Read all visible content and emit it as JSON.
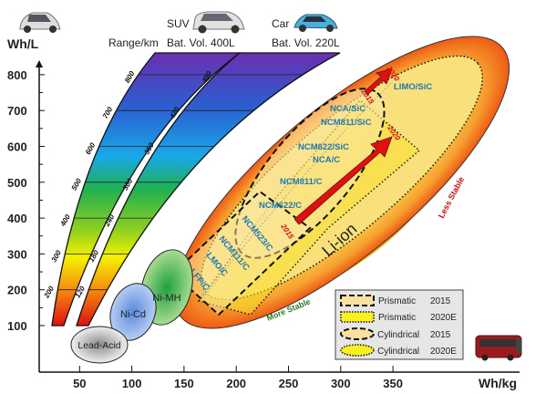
{
  "chart_data": {
    "type": "diagram",
    "title": "",
    "ylabel": "Wh/L",
    "xlabel": "Wh/kg",
    "ylim": [
      0,
      850
    ],
    "xlim": [
      0,
      375
    ],
    "y_ticks": [
      100,
      200,
      300,
      400,
      500,
      600,
      700,
      800
    ],
    "x_ticks": [
      50,
      100,
      150,
      200,
      250,
      300,
      350
    ],
    "range_header": "Range/km",
    "range_bands": [
      {
        "vehicle": "SUV",
        "volume": "Bat. Vol. 400L",
        "ticks": [
          "200",
          "300",
          "400",
          "500",
          "600",
          "700",
          "800"
        ]
      },
      {
        "vehicle": "Car",
        "volume": "Bat. Vol. 220L",
        "ticks": [
          "120",
          "180",
          "240",
          "300",
          "360",
          "420",
          "480"
        ]
      }
    ],
    "technologies": [
      "Lead-Acid",
      "Ni-Cd",
      "Ni-MH",
      "Li-ion"
    ],
    "chemistries": [
      "LIMO/SiC",
      "NCA/SiC",
      "NCM811/SiC",
      "NCM622/SiC",
      "NCA/C",
      "NCM811/C",
      "NCM622/C",
      "NCM523/C",
      "NCM111/C",
      "LMO/C",
      "LFP/C"
    ],
    "arrow_labels": [
      "2015",
      "2020",
      "2015",
      "2020"
    ],
    "stability": {
      "low": "More Stable",
      "high": "Less Stable"
    },
    "legend": [
      {
        "label": "Prismatic",
        "year": "2015"
      },
      {
        "label": "Prismatic",
        "year": "2020E"
      },
      {
        "label": "Cylindrical",
        "year": "2015"
      },
      {
        "label": "Cylindrical",
        "year": "2020E"
      }
    ]
  }
}
